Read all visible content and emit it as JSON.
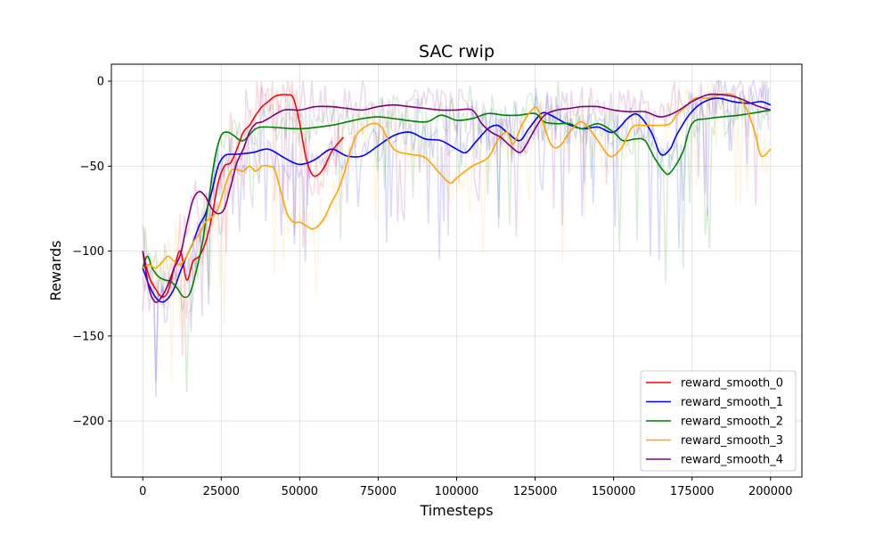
{
  "chart_data": {
    "type": "line",
    "title": "SAC rwip",
    "xlabel": "Timesteps",
    "ylabel": "Rewards",
    "xlim": [
      -10000,
      210000
    ],
    "ylim": [
      -233,
      10
    ],
    "xticks": [
      0,
      25000,
      50000,
      75000,
      100000,
      125000,
      150000,
      175000,
      200000
    ],
    "yticks": [
      0,
      -50,
      -100,
      -150,
      -200
    ],
    "grid": true,
    "legend": "bottom-right",
    "series": [
      {
        "name": "reward_smooth_0",
        "color": "#ff0000",
        "raw_opacity": 0.15,
        "x": [
          0,
          2000,
          4000,
          6000,
          8000,
          10000,
          12000,
          14000,
          16000,
          18000,
          20000,
          22000,
          24000,
          26000,
          28000,
          30000,
          32000,
          34000,
          36000,
          38000,
          40000,
          42000,
          44000,
          46000,
          48000,
          50000,
          52000,
          54000,
          56000,
          58000,
          60000,
          62000,
          64000
        ],
        "y": [
          -100,
          -115,
          -122,
          -127,
          -124,
          -110,
          -100,
          -117,
          -106,
          -103,
          -95,
          -80,
          -60,
          -50,
          -48,
          -40,
          -30,
          -26,
          -20,
          -15,
          -12,
          -9,
          -8,
          -8,
          -10,
          -25,
          -45,
          -55,
          -55,
          -50,
          -42,
          -37,
          -33
        ]
      },
      {
        "name": "reward_smooth_1",
        "color": "#0000ff",
        "raw_opacity": 0.15,
        "x": [
          0,
          2000,
          4000,
          6000,
          8000,
          10000,
          12000,
          14000,
          16000,
          18000,
          20000,
          22000,
          24000,
          26000,
          28000,
          30000,
          35000,
          40000,
          45000,
          50000,
          55000,
          60000,
          65000,
          70000,
          75000,
          80000,
          85000,
          90000,
          95000,
          100000,
          103000,
          106000,
          110000,
          113000,
          116000,
          120000,
          123000,
          127000,
          130000,
          135000,
          140000,
          145000,
          150000,
          155000,
          158000,
          162000,
          165000,
          168000,
          170000,
          174000,
          178000,
          183000,
          188000,
          193000,
          197000,
          200000
        ],
        "y": [
          -110,
          -120,
          -127,
          -130,
          -128,
          -122,
          -112,
          -103,
          -95,
          -85,
          -78,
          -65,
          -50,
          -44,
          -43,
          -43,
          -42,
          -40,
          -45,
          -49,
          -46,
          -40,
          -44,
          -44,
          -38,
          -32,
          -30,
          -34,
          -35,
          -40,
          -42,
          -36,
          -28,
          -26,
          -30,
          -35,
          -28,
          -19,
          -20,
          -25,
          -28,
          -27,
          -30,
          -21,
          -20,
          -30,
          -43,
          -40,
          -32,
          -20,
          -13,
          -10,
          -12,
          -13,
          -12,
          -14
        ]
      },
      {
        "name": "reward_smooth_2",
        "color": "#008000",
        "raw_opacity": 0.15,
        "x": [
          0,
          1500,
          3000,
          5000,
          7000,
          9000,
          11000,
          13000,
          15000,
          17000,
          19000,
          21000,
          23000,
          25000,
          27000,
          29000,
          32000,
          36000,
          40000,
          50000,
          60000,
          65000,
          70000,
          75000,
          80000,
          90000,
          95000,
          100000,
          105000,
          110000,
          115000,
          120000,
          125000,
          128000,
          132000,
          136000,
          140000,
          145000,
          150000,
          153000,
          157000,
          160000,
          163000,
          166000,
          168000,
          172000,
          175000,
          180000,
          190000,
          200000
        ],
        "y": [
          -110,
          -103,
          -110,
          -115,
          -117,
          -118,
          -122,
          -127,
          -125,
          -112,
          -95,
          -70,
          -45,
          -32,
          -30,
          -32,
          -35,
          -28,
          -27,
          -28,
          -26,
          -24,
          -22,
          -21,
          -22,
          -24,
          -20,
          -23,
          -22,
          -19,
          -20,
          -20,
          -19,
          -24,
          -25,
          -25,
          -28,
          -25,
          -30,
          -35,
          -34,
          -35,
          -45,
          -53,
          -54,
          -42,
          -25,
          -22,
          -20,
          -17
        ]
      },
      {
        "name": "reward_smooth_3",
        "color": "#ffa500",
        "raw_opacity": 0.12,
        "x": [
          0,
          2000,
          4000,
          6000,
          8000,
          10000,
          12000,
          14000,
          16000,
          18000,
          20000,
          22000,
          24000,
          26000,
          28000,
          30000,
          32000,
          34000,
          36000,
          38000,
          40000,
          42000,
          44000,
          46000,
          48000,
          50000,
          52000,
          54000,
          56000,
          58000,
          60000,
          62000,
          64000,
          66000,
          68000,
          70000,
          73000,
          76000,
          80000,
          85000,
          90000,
          95000,
          98000,
          100000,
          105000,
          110000,
          113000,
          116000,
          118000,
          121000,
          124000,
          126000,
          130000,
          133000,
          136000,
          140000,
          145000,
          148000,
          150000,
          153000,
          156000,
          160000,
          165000,
          168000,
          170000,
          173000,
          176000,
          180000,
          184000,
          188000,
          192000,
          195000,
          197000,
          200000
        ],
        "y": [
          -110,
          -108,
          -110,
          -107,
          -103,
          -106,
          -108,
          -103,
          -95,
          -90,
          -83,
          -80,
          -75,
          -63,
          -53,
          -52,
          -53,
          -50,
          -53,
          -50,
          -50,
          -52,
          -65,
          -78,
          -83,
          -83,
          -85,
          -87,
          -85,
          -80,
          -72,
          -65,
          -55,
          -42,
          -32,
          -28,
          -25,
          -27,
          -40,
          -43,
          -45,
          -55,
          -60,
          -57,
          -50,
          -45,
          -35,
          -30,
          -37,
          -25,
          -17,
          -17,
          -37,
          -38,
          -30,
          -24,
          -35,
          -43,
          -44,
          -38,
          -27,
          -26,
          -26,
          -25,
          -20,
          -15,
          -10,
          -10,
          -8,
          -8,
          -15,
          -30,
          -44,
          -40
        ]
      },
      {
        "name": "reward_smooth_4",
        "color": "#800080",
        "raw_opacity": 0.15,
        "x": [
          0,
          2000,
          4000,
          6000,
          8000,
          10000,
          12000,
          14000,
          16000,
          18000,
          20000,
          22000,
          24000,
          26000,
          28000,
          30000,
          32000,
          34000,
          36000,
          38000,
          40000,
          45000,
          50000,
          55000,
          60000,
          65000,
          70000,
          75000,
          80000,
          85000,
          90000,
          95000,
          100000,
          105000,
          108000,
          111000,
          114000,
          117000,
          120000,
          122000,
          125000,
          128000,
          132000,
          136000,
          140000,
          145000,
          150000,
          155000,
          160000,
          165000,
          170000,
          175000,
          180000,
          185000,
          190000,
          195000,
          200000
        ],
        "y": [
          -100,
          -122,
          -130,
          -127,
          -120,
          -110,
          -102,
          -85,
          -70,
          -65,
          -68,
          -75,
          -78,
          -75,
          -62,
          -48,
          -40,
          -30,
          -25,
          -24,
          -22,
          -17,
          -17,
          -15,
          -15,
          -16,
          -17,
          -15,
          -14,
          -15,
          -16,
          -17,
          -17,
          -17,
          -25,
          -30,
          -33,
          -38,
          -42,
          -38,
          -28,
          -20,
          -17,
          -16,
          -15,
          -15,
          -17,
          -18,
          -18,
          -21,
          -18,
          -12,
          -8,
          -8,
          -10,
          -14,
          -17
        ]
      }
    ]
  }
}
